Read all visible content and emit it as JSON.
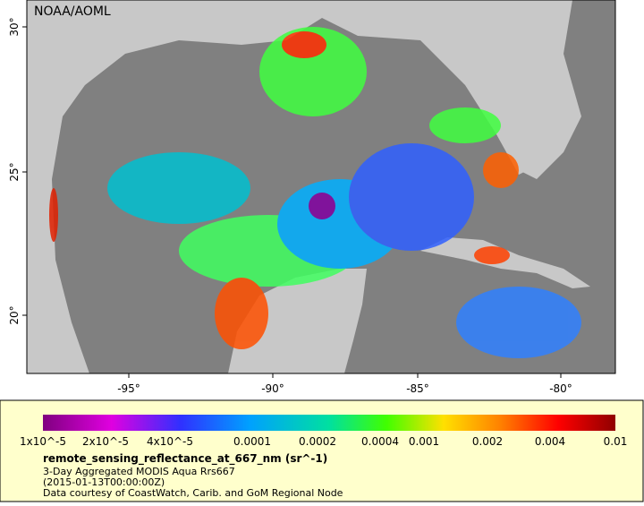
{
  "map": {
    "credit": "NOAA/AOML",
    "lon_ticks": [
      "-95°",
      "-90°",
      "-85°",
      "-80°"
    ],
    "lat_ticks": [
      "30°",
      "25°",
      "20°"
    ]
  },
  "legend": {
    "tick_labels": [
      "1x10^-5",
      "2x10^-5",
      "4x10^-5",
      "0.0001",
      "0.0002",
      "0.0004",
      "0.001",
      "0.002",
      "0.004",
      "0.01"
    ],
    "variable": "remote_sensing_reflectance_at_667_nm (sr^-1)",
    "lines": [
      "3-Day Aggregated MODIS Aqua Rrs667",
      "(2015-01-13T00:00:00Z)",
      "Data courtesy of CoastWatch, Carib. and GoM Regional Node"
    ]
  }
}
